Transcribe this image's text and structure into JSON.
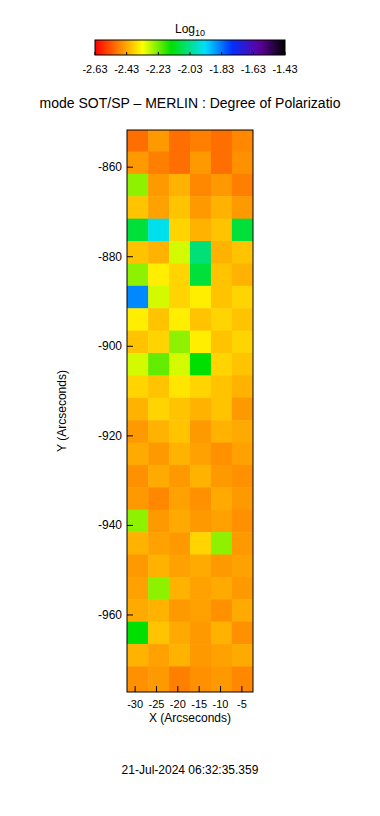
{
  "chart_data": {
    "type": "heatmap",
    "title": "mode SOT/SP – MERLIN : Degree of Polarizatio",
    "x_label": "X (Arcseconds)",
    "y_label": "Y (Arcseconds)",
    "annotations": [
      "21-Jul-2024 06:32:35.359"
    ],
    "xlim": [
      -31.9,
      -2.4
    ],
    "ylim": [
      -977.2,
      -851.7
    ],
    "xticks": [
      -30,
      -25,
      -20,
      -15,
      -10,
      -5
    ],
    "yticks": [
      -960,
      -940,
      -920,
      -900,
      -880,
      -860
    ],
    "x": [
      -29.4,
      -24.5,
      -19.6,
      -14.7,
      -9.8,
      -4.9
    ],
    "y": [
      -854,
      -859,
      -864,
      -869,
      -874,
      -879,
      -884,
      -889,
      -894,
      -899,
      -904,
      -909,
      -914,
      -919,
      -924,
      -929,
      -934,
      -939,
      -944,
      -949,
      -954,
      -959,
      -964,
      -969,
      -974
    ],
    "values": [
      [
        -2.5,
        -2.45,
        -2.5,
        -2.48,
        -2.5,
        -2.47
      ],
      [
        -2.45,
        -2.48,
        -2.5,
        -2.45,
        -2.5,
        -2.46
      ],
      [
        -2.25,
        -2.45,
        -2.42,
        -2.47,
        -2.45,
        -2.48
      ],
      [
        -2.4,
        -2.44,
        -2.4,
        -2.45,
        -2.42,
        -2.45
      ],
      [
        -2.1,
        -1.95,
        -2.38,
        -2.42,
        -2.4,
        -2.1
      ],
      [
        -2.4,
        -2.42,
        -2.3,
        -2.05,
        -2.42,
        -2.4
      ],
      [
        -2.25,
        -2.35,
        -2.38,
        -2.1,
        -2.4,
        -2.42
      ],
      [
        -1.85,
        -2.3,
        -2.38,
        -2.35,
        -2.4,
        -2.38
      ],
      [
        -2.35,
        -2.4,
        -2.35,
        -2.4,
        -2.38,
        -2.4
      ],
      [
        -2.4,
        -2.38,
        -2.25,
        -2.35,
        -2.4,
        -2.38
      ],
      [
        -2.3,
        -2.22,
        -2.3,
        -2.15,
        -2.38,
        -2.4
      ],
      [
        -2.38,
        -2.4,
        -2.36,
        -2.38,
        -2.4,
        -2.42
      ],
      [
        -2.42,
        -2.38,
        -2.4,
        -2.42,
        -2.4,
        -2.45
      ],
      [
        -2.45,
        -2.42,
        -2.4,
        -2.45,
        -2.42,
        -2.43
      ],
      [
        -2.43,
        -2.45,
        -2.42,
        -2.44,
        -2.46,
        -2.44
      ],
      [
        -2.46,
        -2.43,
        -2.45,
        -2.42,
        -2.45,
        -2.46
      ],
      [
        -2.45,
        -2.47,
        -2.44,
        -2.46,
        -2.43,
        -2.45
      ],
      [
        -2.25,
        -2.45,
        -2.43,
        -2.45,
        -2.44,
        -2.46
      ],
      [
        -2.42,
        -2.44,
        -2.45,
        -2.38,
        -2.25,
        -2.45
      ],
      [
        -2.45,
        -2.42,
        -2.44,
        -2.43,
        -2.45,
        -2.44
      ],
      [
        -2.44,
        -2.25,
        -2.42,
        -2.44,
        -2.43,
        -2.45
      ],
      [
        -2.43,
        -2.42,
        -2.45,
        -2.44,
        -2.46,
        -2.43
      ],
      [
        -2.15,
        -2.4,
        -2.43,
        -2.45,
        -2.42,
        -2.46
      ],
      [
        -2.42,
        -2.44,
        -2.42,
        -2.45,
        -2.44,
        -2.43
      ],
      [
        -2.46,
        -2.45,
        -2.48,
        -2.46,
        -2.45,
        -2.47
      ]
    ],
    "colorbar": {
      "label": "Log10",
      "range": [
        -2.63,
        -1.43
      ],
      "ticks": [
        -2.63,
        -2.43,
        -2.23,
        -2.03,
        -1.83,
        -1.63,
        -1.43
      ]
    }
  }
}
